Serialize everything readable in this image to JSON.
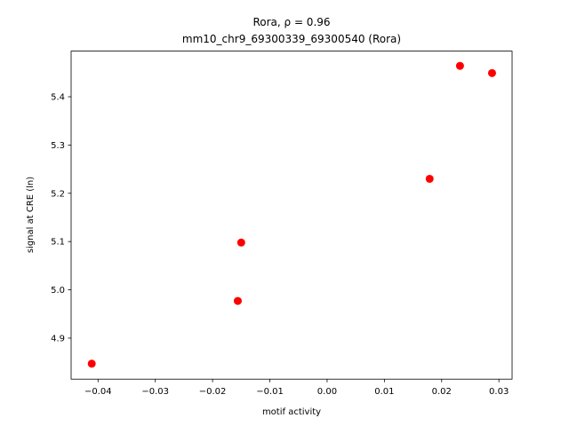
{
  "chart_data": {
    "type": "scatter",
    "title": "Rora, ρ = 0.96",
    "subtitle": "mm10_chr9_69300339_69300540 (Rora)",
    "x_label": "motif activity",
    "y_label": "signal at CRE (ln)",
    "series": [
      {
        "color": "#ff0000",
        "x": [
          -0.0411,
          -0.0156,
          -0.015,
          0.0179,
          0.0232,
          0.0288
        ],
        "values": [
          4.847,
          4.977,
          5.098,
          5.23,
          5.464,
          5.449
        ]
      }
    ],
    "xlim": [
      -0.0447,
      0.0323
    ],
    "ylim": [
      4.815,
      5.4945
    ],
    "xticks": [
      {
        "value": -0.04,
        "label": "−0.04"
      },
      {
        "value": -0.03,
        "label": "−0.03"
      },
      {
        "value": -0.02,
        "label": "−0.02"
      },
      {
        "value": -0.01,
        "label": "−0.01"
      },
      {
        "value": 0,
        "label": "0.00"
      },
      0.01,
      0.02,
      0.03
    ],
    "yticks": [
      4.9,
      {
        "value": 5,
        "label": "5.0"
      },
      5.1,
      5.2,
      5.3,
      5.4
    ]
  }
}
